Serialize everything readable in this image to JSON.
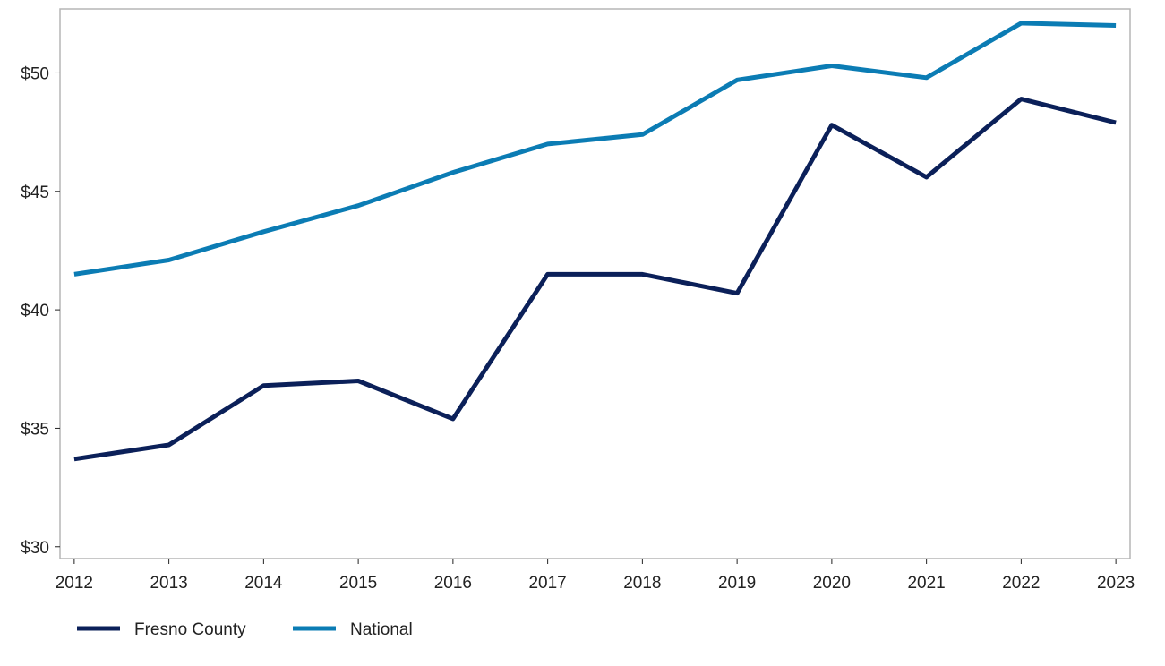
{
  "chart_data": {
    "type": "line",
    "title": "",
    "xlabel": "",
    "ylabel": "",
    "x": [
      2012,
      2013,
      2014,
      2015,
      2016,
      2017,
      2018,
      2019,
      2020,
      2021,
      2022,
      2023
    ],
    "x_tick_labels": [
      "2012",
      "2013",
      "2014",
      "2015",
      "2016",
      "2017",
      "2018",
      "2019",
      "2020",
      "2021",
      "2022",
      "2023"
    ],
    "y_ticks": [
      30,
      35,
      40,
      45,
      50
    ],
    "y_tick_labels": [
      "$30",
      "$35",
      "$40",
      "$45",
      "$50"
    ],
    "ylim": [
      29.5,
      52.7
    ],
    "xlim": [
      2011.85,
      2023.15
    ],
    "grid": false,
    "legend_position": "bottom-left",
    "series": [
      {
        "name": "Fresno County",
        "color": "#0b2059",
        "values": [
          33.7,
          34.3,
          36.8,
          37.0,
          35.4,
          41.5,
          41.5,
          40.7,
          47.8,
          45.6,
          48.9,
          47.9
        ]
      },
      {
        "name": "National",
        "color": "#0b7cb4",
        "values": [
          41.5,
          42.1,
          43.3,
          44.4,
          45.8,
          47.0,
          47.4,
          49.7,
          50.3,
          49.8,
          52.1,
          52.0
        ]
      }
    ]
  }
}
